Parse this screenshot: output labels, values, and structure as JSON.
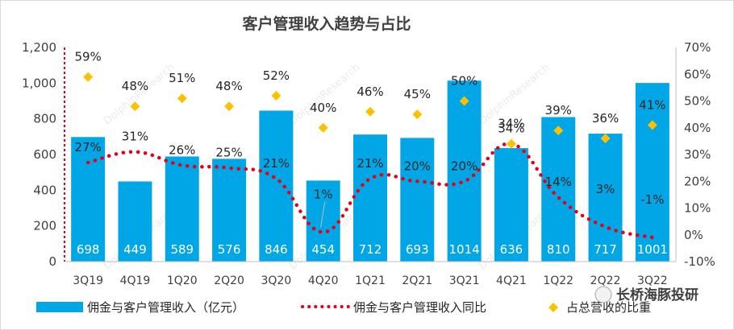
{
  "chart_data": {
    "type": "bar",
    "title": "客户管理收入趋势与占比",
    "categories": [
      "3Q19",
      "4Q19",
      "1Q20",
      "2Q20",
      "3Q20",
      "4Q20",
      "1Q21",
      "2Q21",
      "3Q21",
      "4Q21",
      "1Q22",
      "2Q22",
      "3Q22"
    ],
    "series": [
      {
        "name": "佣金与客户管理收入（亿元）",
        "type": "bar",
        "axis": "left",
        "color": "#00A6E6",
        "values": [
          698,
          449,
          589,
          576,
          846,
          454,
          712,
          693,
          1014,
          636,
          810,
          717,
          1001
        ],
        "labels": [
          "698",
          "449",
          "589",
          "576",
          "846",
          "454",
          "712",
          "693",
          "1014",
          "636",
          "810",
          "717",
          "1001"
        ]
      },
      {
        "name": "佣金与客户管理收入同比",
        "type": "line",
        "style": "dotted",
        "axis": "right",
        "color": "#E60012",
        "values": [
          27,
          31,
          26,
          25,
          21,
          1,
          21,
          20,
          20,
          34,
          14,
          3,
          -1
        ],
        "labels": [
          "27%",
          "31%",
          "26%",
          "25%",
          "21%",
          "1%",
          "21%",
          "20%",
          "20%",
          "34%",
          "14%",
          "3%",
          "-1%"
        ]
      },
      {
        "name": "占总营收的比重",
        "type": "scatter",
        "marker": "diamond",
        "axis": "right",
        "color": "#FFC000",
        "values": [
          59,
          48,
          51,
          48,
          52,
          40,
          46,
          45,
          50,
          34,
          39,
          36,
          41
        ],
        "labels": [
          "59%",
          "48%",
          "51%",
          "48%",
          "52%",
          "40%",
          "46%",
          "45%",
          "50%",
          "34%",
          "39%",
          "36%",
          "41%"
        ]
      }
    ],
    "left_axis": {
      "min": 0,
      "max": 1200,
      "step": 200,
      "ticks": [
        "0",
        "200",
        "400",
        "600",
        "800",
        "1,000",
        "1,200"
      ]
    },
    "right_axis": {
      "min": -10,
      "max": 70,
      "step": 10,
      "ticks": [
        "-10%",
        "0%",
        "10%",
        "20%",
        "30%",
        "40%",
        "50%",
        "60%",
        "70%"
      ]
    },
    "legend_position": "bottom",
    "grid": false
  },
  "watermark": {
    "brand": "长桥海豚投研",
    "text": "DolphinResearch"
  }
}
